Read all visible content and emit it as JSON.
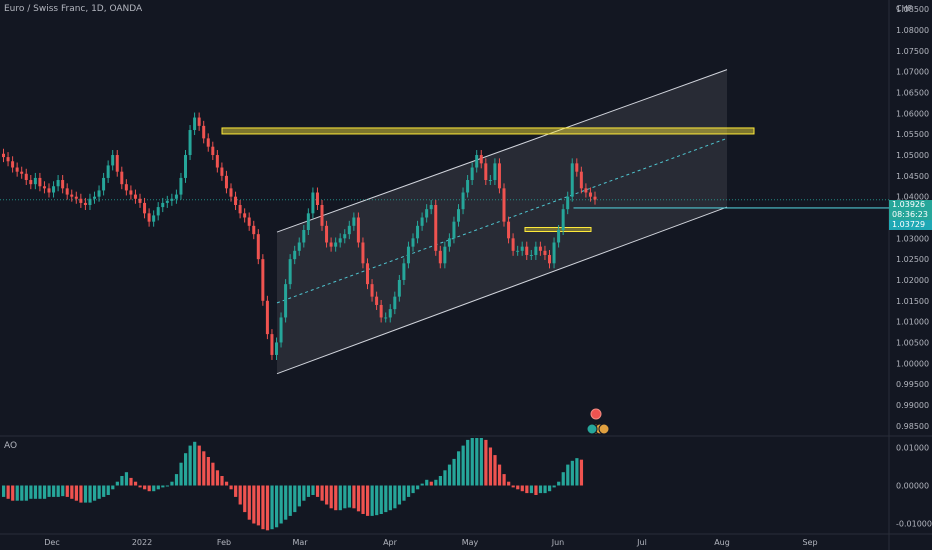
{
  "header": {
    "title": "Euro / Swiss Franc, 1D, OANDA",
    "currency": "CHF"
  },
  "indicator": {
    "name": "AO"
  },
  "price_badges": {
    "last_price": "1.03926",
    "countdown": "08:36:23",
    "level_price": "1.03729"
  },
  "colors": {
    "up": "#26a69a",
    "down": "#ef5350",
    "teal": "#4fc4cf",
    "yellow": "#ffeb3b",
    "background": "#131722",
    "text": "#b2b5be"
  },
  "chart_data": {
    "type": "candlestick",
    "price_axis": {
      "ticks": [
        "1.08500",
        "1.08000",
        "1.07500",
        "1.07000",
        "1.06500",
        "1.06000",
        "1.05500",
        "1.05000",
        "1.04500",
        "1.04000",
        "1.03500",
        "1.03000",
        "1.02500",
        "1.02000",
        "1.01500",
        "1.01000",
        "1.00500",
        "1.00000",
        "0.99500",
        "0.99000",
        "0.98500"
      ],
      "range": [
        0.9835,
        1.0865
      ]
    },
    "ao_axis": {
      "ticks": [
        "0.01000",
        "0.00000",
        "-0.01000"
      ],
      "range": [
        -0.0125,
        0.0125
      ]
    },
    "time_axis": {
      "labels": [
        "Dec",
        "2022",
        "Feb",
        "Mar",
        "Apr",
        "May",
        "Jun",
        "Jul",
        "Aug",
        "Sep"
      ]
    },
    "last_price": 1.03926,
    "horizontal_level": 1.03729,
    "resistance_zone": [
      1.0555,
      1.0565
    ],
    "small_zone": [
      1.0318,
      1.0326
    ],
    "channel": {
      "upper": [
        [
          1.0315,
          1.0705
        ]
      ],
      "lower": [
        [
          0.9975,
          1.0375
        ]
      ]
    },
    "price_path": [
      1.0495,
      1.0485,
      1.047,
      1.046,
      1.0455,
      1.044,
      1.043,
      1.0445,
      1.0425,
      1.042,
      1.041,
      1.0425,
      1.044,
      1.042,
      1.0405,
      1.04,
      1.0395,
      1.0385,
      1.038,
      1.0395,
      1.04,
      1.0415,
      1.0445,
      1.0475,
      1.05,
      1.046,
      1.043,
      1.0415,
      1.0405,
      1.0395,
      1.0385,
      1.036,
      1.034,
      1.0355,
      1.0375,
      1.0385,
      1.039,
      1.0395,
      1.0405,
      1.0445,
      1.05,
      1.056,
      1.059,
      1.057,
      1.054,
      1.052,
      1.05,
      1.047,
      1.045,
      1.042,
      1.04,
      1.038,
      1.036,
      1.035,
      1.033,
      1.031,
      1.025,
      1.015,
      1.007,
      1.002,
      1.005,
      1.011,
      1.019,
      1.025,
      1.027,
      1.029,
      1.032,
      1.036,
      1.041,
      1.038,
      1.033,
      1.029,
      1.028,
      1.029,
      1.03,
      1.031,
      1.033,
      1.035,
      1.029,
      1.024,
      1.019,
      1.016,
      1.014,
      1.011,
      1.011,
      1.013,
      1.016,
      1.02,
      1.024,
      1.028,
      1.03,
      1.033,
      1.035,
      1.037,
      1.038,
      1.027,
      1.024,
      1.028,
      1.03,
      1.034,
      1.037,
      1.041,
      1.044,
      1.047,
      1.05,
      1.048,
      1.044,
      1.044,
      1.048,
      1.042,
      1.034,
      1.03,
      1.027,
      1.027,
      1.028,
      1.026,
      1.026,
      1.028,
      1.027,
      1.026,
      1.024,
      1.029,
      1.032,
      1.037,
      1.04,
      1.048,
      1.046,
      1.042,
      1.041,
      1.04,
      1.0393
    ],
    "ao_values": [
      -0.003,
      -0.0035,
      -0.004,
      -0.004,
      -0.004,
      -0.004,
      -0.0035,
      -0.0035,
      -0.0035,
      -0.0035,
      -0.003,
      -0.003,
      -0.003,
      -0.0028,
      -0.003,
      -0.0035,
      -0.004,
      -0.0045,
      -0.0045,
      -0.0045,
      -0.004,
      -0.0035,
      -0.003,
      -0.0025,
      -0.001,
      0.001,
      0.0025,
      0.0035,
      0.002,
      0.001,
      -0.0005,
      -0.001,
      -0.0015,
      -0.0015,
      -0.001,
      -0.0005,
      0.0,
      0.001,
      0.003,
      0.006,
      0.0085,
      0.0105,
      0.0115,
      0.0105,
      0.009,
      0.0075,
      0.006,
      0.004,
      0.0025,
      0.001,
      -0.001,
      -0.003,
      -0.005,
      -0.007,
      -0.009,
      -0.01,
      -0.0105,
      -0.0115,
      -0.0118,
      -0.0115,
      -0.011,
      -0.01,
      -0.009,
      -0.008,
      -0.007,
      -0.0055,
      -0.004,
      -0.003,
      -0.0025,
      -0.003,
      -0.004,
      -0.005,
      -0.006,
      -0.0065,
      -0.0065,
      -0.006,
      -0.0058,
      -0.006,
      -0.0068,
      -0.0075,
      -0.008,
      -0.008,
      -0.0078,
      -0.0075,
      -0.007,
      -0.0065,
      -0.006,
      -0.005,
      -0.004,
      -0.003,
      -0.002,
      -0.001,
      0.0005,
      0.0015,
      0.001,
      0.0015,
      0.0025,
      0.004,
      0.0055,
      0.007,
      0.009,
      0.0105,
      0.012,
      0.0125,
      0.0125,
      0.0125,
      0.012,
      0.01,
      0.008,
      0.0055,
      0.003,
      0.001,
      -0.0005,
      -0.001,
      -0.0015,
      -0.002,
      -0.002,
      -0.0025,
      -0.002,
      -0.002,
      -0.0015,
      -0.0005,
      0.001,
      0.0035,
      0.0055,
      0.0065,
      0.0072,
      0.0068
    ]
  }
}
